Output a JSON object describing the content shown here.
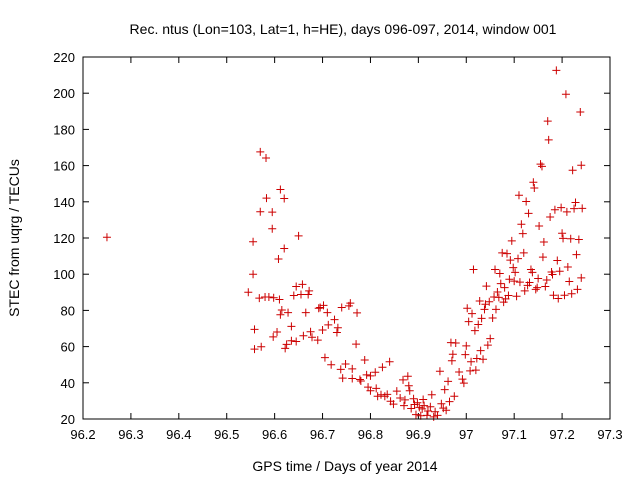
{
  "chart_data": {
    "type": "scatter",
    "title": "Rec. ntus (Lon=103, Lat=1, h=HE), days 096-097, 2014, window 001",
    "xlabel": "GPS time / Days of year 2014",
    "ylabel": "STEC from uqrg / TECUs",
    "xlim": [
      96.2,
      97.3
    ],
    "ylim": [
      20,
      220
    ],
    "xticks": [
      96.2,
      96.3,
      96.4,
      96.5,
      96.6,
      96.7,
      96.8,
      96.9,
      97,
      97.1,
      97.2,
      97.3
    ],
    "xtick_labels": [
      "96.2",
      "96.3",
      "96.4",
      "96.5",
      "96.6",
      "96.7",
      "96.8",
      "96.9",
      "97",
      "97.1",
      "97.2",
      "97.3"
    ],
    "yticks": [
      20,
      40,
      60,
      80,
      100,
      120,
      140,
      160,
      180,
      200,
      220
    ],
    "ytick_labels": [
      "20",
      "40",
      "60",
      "80",
      "100",
      "120",
      "140",
      "160",
      "180",
      "200",
      "220"
    ],
    "marker": "plus",
    "color": "#cc0000",
    "grid": false,
    "legend": "none",
    "points": [
      [
        96.25,
        120.4
      ],
      [
        96.545,
        90.0
      ],
      [
        96.555,
        100.0
      ],
      [
        96.555,
        117.9
      ],
      [
        96.558,
        69.5
      ],
      [
        96.558,
        58.6
      ],
      [
        96.568,
        86.8
      ],
      [
        96.57,
        134.5
      ],
      [
        96.57,
        167.6
      ],
      [
        96.572,
        59.9
      ],
      [
        96.58,
        87.4
      ],
      [
        96.582,
        164.2
      ],
      [
        96.583,
        142.0
      ],
      [
        96.588,
        87.4
      ],
      [
        96.595,
        134.3
      ],
      [
        96.595,
        125.1
      ],
      [
        96.597,
        65.4
      ],
      [
        96.598,
        87.0
      ],
      [
        96.605,
        68.1
      ],
      [
        96.608,
        108.4
      ],
      [
        96.61,
        86.0
      ],
      [
        96.612,
        146.8
      ],
      [
        96.612,
        77.6
      ],
      [
        96.615,
        80.2
      ],
      [
        96.62,
        141.8
      ],
      [
        96.62,
        114.2
      ],
      [
        96.622,
        59.0
      ],
      [
        96.625,
        61.2
      ],
      [
        96.628,
        78.8
      ],
      [
        96.635,
        71.2
      ],
      [
        96.635,
        63.2
      ],
      [
        96.64,
        88.2
      ],
      [
        96.645,
        93.2
      ],
      [
        96.645,
        62.8
      ],
      [
        96.65,
        121.2
      ],
      [
        96.655,
        88.8
      ],
      [
        96.658,
        94.4
      ],
      [
        96.66,
        66.0
      ],
      [
        96.665,
        78.8
      ],
      [
        96.67,
        88.8
      ],
      [
        96.672,
        90.8
      ],
      [
        96.675,
        68.2
      ],
      [
        96.678,
        65.2
      ],
      [
        96.69,
        63.6
      ],
      [
        96.692,
        81.2
      ],
      [
        96.695,
        81.6
      ],
      [
        96.7,
        69.2
      ],
      [
        96.702,
        82.8
      ],
      [
        96.705,
        53.9
      ],
      [
        96.71,
        78.8
      ],
      [
        96.712,
        72.0
      ],
      [
        96.718,
        50.0
      ],
      [
        96.725,
        74.9
      ],
      [
        96.73,
        67.8
      ],
      [
        96.732,
        70.4
      ],
      [
        96.738,
        47.4
      ],
      [
        96.74,
        81.6
      ],
      [
        96.742,
        42.6
      ],
      [
        96.748,
        50.4
      ],
      [
        96.755,
        82.5
      ],
      [
        96.758,
        84.0
      ],
      [
        96.762,
        42.4
      ],
      [
        96.762,
        47.7
      ],
      [
        96.77,
        61.4
      ],
      [
        96.772,
        78.6
      ],
      [
        96.778,
        41.8
      ],
      [
        96.78,
        41.0
      ],
      [
        96.788,
        52.6
      ],
      [
        96.792,
        44.4
      ],
      [
        96.795,
        37.6
      ],
      [
        96.8,
        35.6
      ],
      [
        96.8,
        43.8
      ],
      [
        96.81,
        45.8
      ],
      [
        96.812,
        36.9
      ],
      [
        96.815,
        32.6
      ],
      [
        96.822,
        33.4
      ],
      [
        96.825,
        48.6
      ],
      [
        96.83,
        32.6
      ],
      [
        96.835,
        33.6
      ],
      [
        96.84,
        51.6
      ],
      [
        96.842,
        29.8
      ],
      [
        96.848,
        28.2
      ],
      [
        96.855,
        35.4
      ],
      [
        96.862,
        31.6
      ],
      [
        96.868,
        41.6
      ],
      [
        96.87,
        27.4
      ],
      [
        96.872,
        30.6
      ],
      [
        96.878,
        43.6
      ],
      [
        96.88,
        38.4
      ],
      [
        96.882,
        35.6
      ],
      [
        96.885,
        25.8
      ],
      [
        96.89,
        31.2
      ],
      [
        96.892,
        28.0
      ],
      [
        96.895,
        22.4
      ],
      [
        96.898,
        29.0
      ],
      [
        96.902,
        26.4
      ],
      [
        96.905,
        21.8
      ],
      [
        96.908,
        25.6
      ],
      [
        96.91,
        30.8
      ],
      [
        96.912,
        27.4
      ],
      [
        96.918,
        22.0
      ],
      [
        96.92,
        24.4
      ],
      [
        96.925,
        26.8
      ],
      [
        96.928,
        33.4
      ],
      [
        96.932,
        21.2
      ],
      [
        96.935,
        24.0
      ],
      [
        96.94,
        22.0
      ],
      [
        96.945,
        46.4
      ],
      [
        96.948,
        28.4
      ],
      [
        96.952,
        26.0
      ],
      [
        96.955,
        36.2
      ],
      [
        96.958,
        24.8
      ],
      [
        96.962,
        40.8
      ],
      [
        96.965,
        29.6
      ],
      [
        96.968,
        62.2
      ],
      [
        96.97,
        52.2
      ],
      [
        96.972,
        55.8
      ],
      [
        96.975,
        32.6
      ],
      [
        96.978,
        62.0
      ],
      [
        96.985,
        46.0
      ],
      [
        96.992,
        42.0
      ],
      [
        96.995,
        39.8
      ],
      [
        96.998,
        55.6
      ],
      [
        97.0,
        60.4
      ],
      [
        97.002,
        81.2
      ],
      [
        97.005,
        73.8
      ],
      [
        97.008,
        46.6
      ],
      [
        97.01,
        51.6
      ],
      [
        97.012,
        78.2
      ],
      [
        97.015,
        102.6
      ],
      [
        97.018,
        68.8
      ],
      [
        97.02,
        47.0
      ],
      [
        97.022,
        53.4
      ],
      [
        97.025,
        72.2
      ],
      [
        97.028,
        85.2
      ],
      [
        97.03,
        57.8
      ],
      [
        97.032,
        75.6
      ],
      [
        97.035,
        53.0
      ],
      [
        97.038,
        80.6
      ],
      [
        97.04,
        83.4
      ],
      [
        97.042,
        93.4
      ],
      [
        97.045,
        60.8
      ],
      [
        97.048,
        84.8
      ],
      [
        97.05,
        64.4
      ],
      [
        97.055,
        75.8
      ],
      [
        97.058,
        87.4
      ],
      [
        97.06,
        102.6
      ],
      [
        97.062,
        80.6
      ],
      [
        97.065,
        90.2
      ],
      [
        97.068,
        87.2
      ],
      [
        97.07,
        100.4
      ],
      [
        97.072,
        94.8
      ],
      [
        97.075,
        111.8
      ],
      [
        97.078,
        84.6
      ],
      [
        97.08,
        92.6
      ],
      [
        97.082,
        86.4
      ],
      [
        97.085,
        111.4
      ],
      [
        97.088,
        88.2
      ],
      [
        97.09,
        97.2
      ],
      [
        97.092,
        107.8
      ],
      [
        97.095,
        118.4
      ],
      [
        97.098,
        103.6
      ],
      [
        97.1,
        96.2
      ],
      [
        97.102,
        101.0
      ],
      [
        97.105,
        87.8
      ],
      [
        97.108,
        108.6
      ],
      [
        97.11,
        143.6
      ],
      [
        97.112,
        95.6
      ],
      [
        97.115,
        127.6
      ],
      [
        97.118,
        122.4
      ],
      [
        97.12,
        111.8
      ],
      [
        97.122,
        90.8
      ],
      [
        97.125,
        140.2
      ],
      [
        97.128,
        93.8
      ],
      [
        97.13,
        133.6
      ],
      [
        97.132,
        95.4
      ],
      [
        97.135,
        102.6
      ],
      [
        97.138,
        101.0
      ],
      [
        97.14,
        150.8
      ],
      [
        97.142,
        147.6
      ],
      [
        97.145,
        91.6
      ],
      [
        97.148,
        92.6
      ],
      [
        97.15,
        97.6
      ],
      [
        97.152,
        126.6
      ],
      [
        97.155,
        160.8
      ],
      [
        97.158,
        159.6
      ],
      [
        97.16,
        109.4
      ],
      [
        97.162,
        117.8
      ],
      [
        97.165,
        93.2
      ],
      [
        97.168,
        96.8
      ],
      [
        97.17,
        184.6
      ],
      [
        97.172,
        174.2
      ],
      [
        97.175,
        131.6
      ],
      [
        97.178,
        101.2
      ],
      [
        97.18,
        99.8
      ],
      [
        97.182,
        88.4
      ],
      [
        97.185,
        135.6
      ],
      [
        97.188,
        212.6
      ],
      [
        97.19,
        107.6
      ],
      [
        97.192,
        86.6
      ],
      [
        97.195,
        101.6
      ],
      [
        97.198,
        136.8
      ],
      [
        97.2,
        122.6
      ],
      [
        97.202,
        119.8
      ],
      [
        97.205,
        88.4
      ],
      [
        97.208,
        199.4
      ],
      [
        97.21,
        134.4
      ],
      [
        97.212,
        104.0
      ],
      [
        97.215,
        96.0
      ],
      [
        97.218,
        119.6
      ],
      [
        97.22,
        89.2
      ],
      [
        97.222,
        157.4
      ],
      [
        97.225,
        136.2
      ],
      [
        97.228,
        139.6
      ],
      [
        97.23,
        110.8
      ],
      [
        97.232,
        91.6
      ],
      [
        97.235,
        119.2
      ],
      [
        97.238,
        189.6
      ],
      [
        97.24,
        160.2
      ],
      [
        97.24,
        98.0
      ],
      [
        97.242,
        136.4
      ]
    ]
  }
}
